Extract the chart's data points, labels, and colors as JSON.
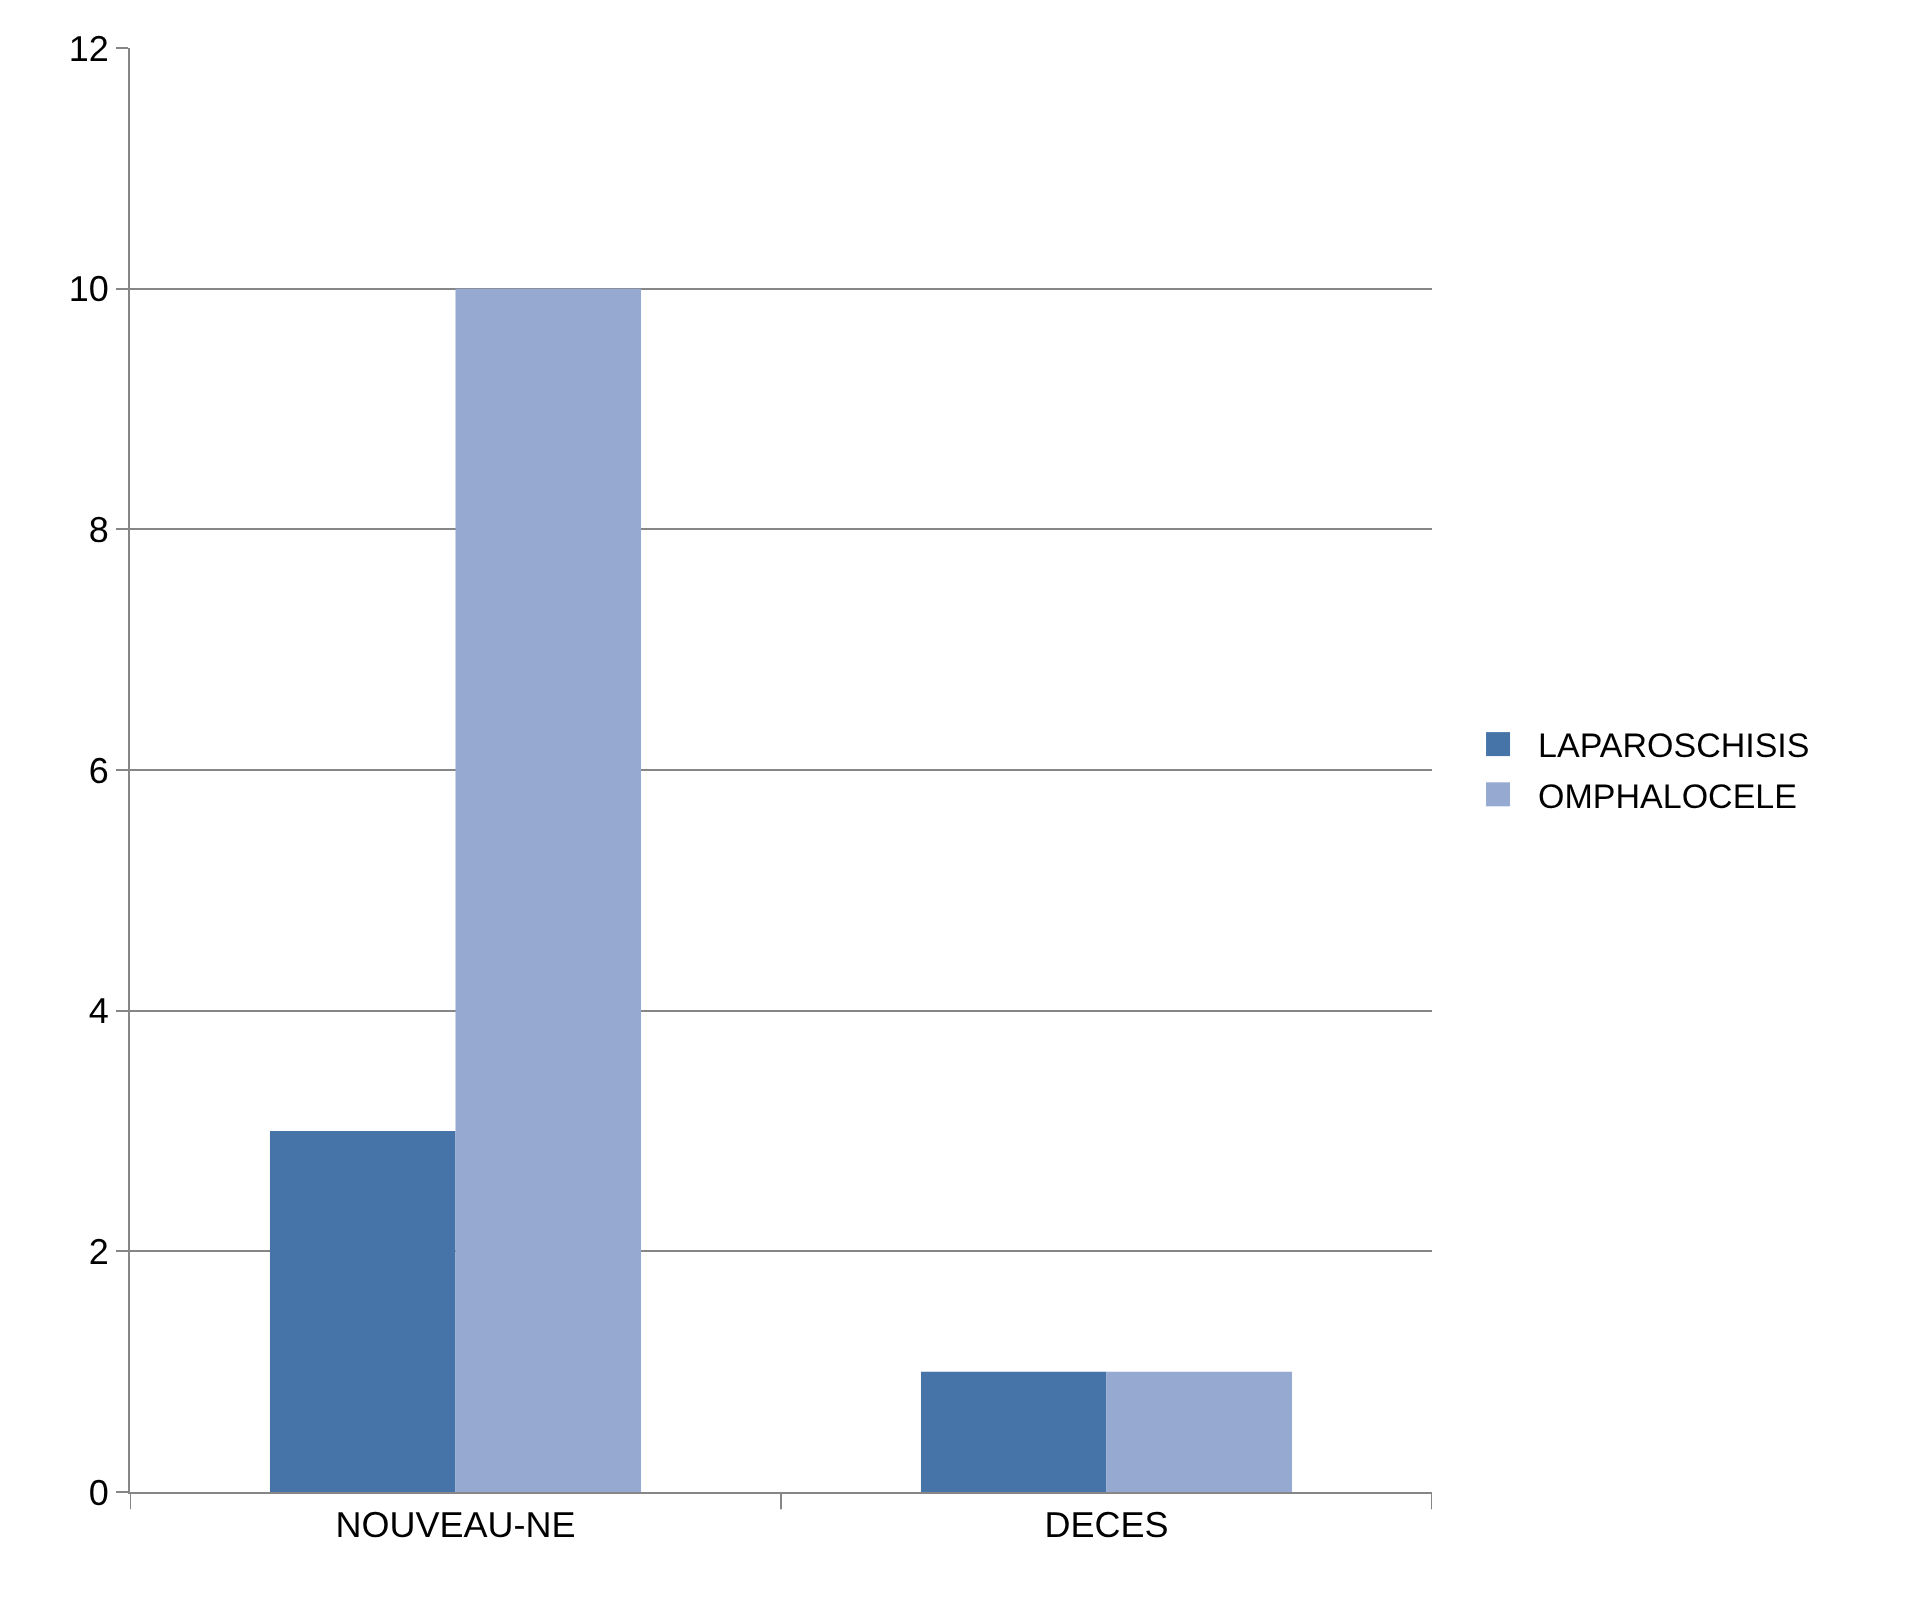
{
  "chart_data": {
    "type": "bar",
    "categories": [
      "NOUVEAU-NE",
      "DECES"
    ],
    "series": [
      {
        "name": "LAPAROSCHISIS",
        "color": "#4674a9",
        "values": [
          3,
          1
        ]
      },
      {
        "name": "OMPHALOCELE",
        "color": "#95a9d1",
        "values": [
          10,
          1
        ]
      }
    ],
    "ylim": [
      0,
      12
    ],
    "yticks": [
      0,
      2,
      4,
      6,
      8,
      10,
      12
    ],
    "grid": "y",
    "legend": "right"
  }
}
